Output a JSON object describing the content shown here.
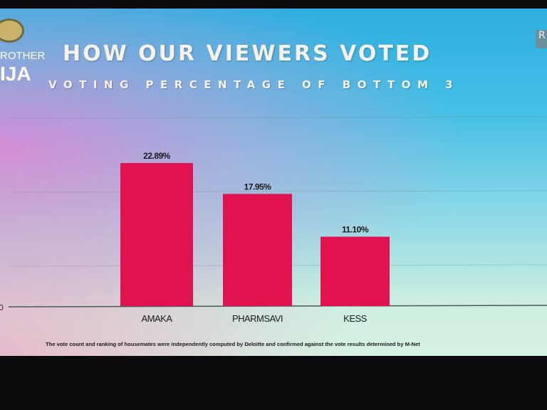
{
  "logo": {
    "line1": "ROTHER",
    "line2": "IJA"
  },
  "corner_tab": "R",
  "chart_data": {
    "type": "bar",
    "title": "HOW OUR VIEWERS VOTED",
    "subtitle": "VOTING PERCENTAGE OF BOTTOM 3",
    "categories": [
      "AMAKA",
      "PHARMSAVI",
      "KESS"
    ],
    "values": [
      22.89,
      17.95,
      11.1
    ],
    "data_labels": [
      "22.89%",
      "17.95%",
      "11.10%"
    ],
    "xlabel": "",
    "ylabel": "",
    "ylim": [
      0,
      25
    ],
    "y_tick_labels": [
      "0"
    ],
    "grid": true,
    "bar_color": "#e0134f"
  },
  "footnote": "The vote count and ranking of housemates were independently computed by Deloitte and confirmed against the vote results determined by M-Net"
}
